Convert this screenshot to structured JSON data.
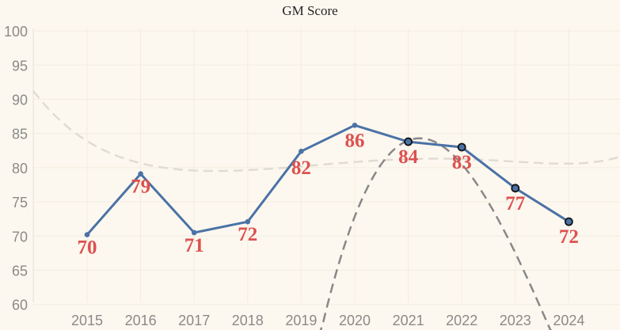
{
  "chart_data": {
    "type": "line",
    "title": "GM Score",
    "categories": [
      "2015",
      "2016",
      "2017",
      "2018",
      "2019",
      "2020",
      "2021",
      "2022",
      "2023",
      "2024"
    ],
    "series": [
      {
        "values": [
          70.2,
          79.1,
          70.5,
          72.1,
          82.4,
          86.2,
          83.8,
          83.0,
          77.0,
          72.1
        ],
        "labels": [
          "70",
          "79",
          "71",
          "72",
          "82",
          "86",
          "84",
          "83",
          "77",
          "72"
        ],
        "highlighted_from_index": 6
      }
    ],
    "y_ticks": [
      60,
      65,
      70,
      75,
      80,
      85,
      90,
      95,
      100
    ],
    "ylim": [
      58,
      102
    ],
    "grid": true,
    "trend_lines": [
      {
        "style": "dashed",
        "color": "#e0dcd3",
        "kind": "smooth fit"
      },
      {
        "style": "dashed",
        "color": "#888888",
        "kind": "steep fit"
      }
    ],
    "colors": {
      "background": "#fdf8ef",
      "line": "#4a72a6",
      "data_label": "#dd5050",
      "grid": "#f2ecdf",
      "axis_text": "#8a8a8a"
    }
  }
}
